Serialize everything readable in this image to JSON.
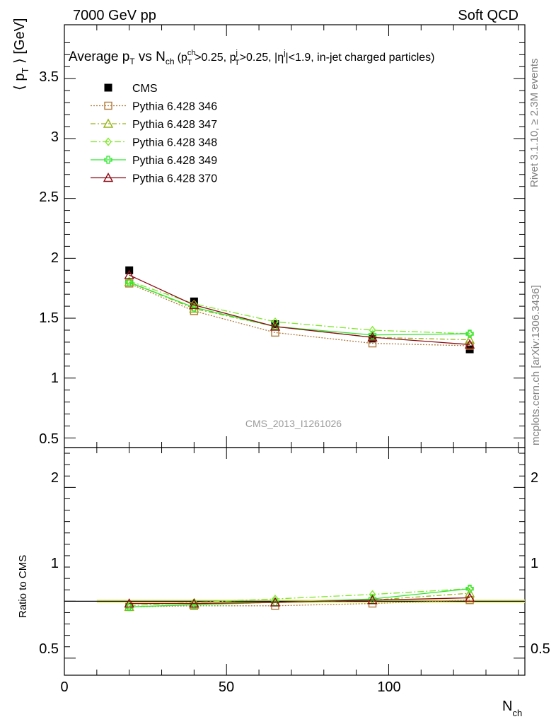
{
  "header": {
    "left": "7000 GeV pp",
    "right": "Soft QCD"
  },
  "side_text": {
    "rivet": "Rivet 3.1.10, ≥ 2.3M events",
    "mcplots": "mcplots.cern.ch [arXiv:1306.3436]"
  },
  "watermark": "CMS_2013_I1261026",
  "title": {
    "pre": "Average p",
    "sub1": "T",
    "mid": " vs N",
    "sub2": "ch",
    "cond": "(p",
    "cond_sup": "ch",
    "cond_sub": "T",
    "cond2": ">0.25, p",
    "cond2_sup": "j",
    "cond2_sub": "T",
    "cond3": ">0.25, |η",
    "cond3_sup": "j",
    "cond4": "|<1.9, in-jet charged particles)"
  },
  "axes": {
    "y_main_label": "⟨ p_T ⟩ [GeV]",
    "y_main_label_pre": "⟨ p",
    "y_main_label_sub": "T",
    "y_main_label_post": " ⟩ [GeV]",
    "y_ratio_label": "Ratio to CMS",
    "x_label": "N",
    "x_label_sub": "ch",
    "x_ticks": [
      "0",
      "50",
      "100"
    ],
    "y_main_ticks": [
      "0.5",
      "1",
      "1.5",
      "2",
      "2.5",
      "3",
      "3.5"
    ],
    "y_ratio_ticks": [
      "0.5",
      "1",
      "2"
    ]
  },
  "chart_data": {
    "type": "line",
    "x": [
      20,
      40,
      65,
      95,
      125
    ],
    "xlim": [
      0,
      142
    ],
    "ylim": [
      0.42,
      3.95
    ],
    "ratio_ylim": [
      0.35,
      2.35
    ],
    "series": [
      {
        "name": "CMS",
        "color": "#000000",
        "marker": "filled-square",
        "line": "none",
        "values": [
          1.9,
          1.64,
          1.45,
          1.33,
          1.24
        ]
      },
      {
        "name": "Pythia 6.428 346",
        "color": "#b07b3c",
        "marker": "open-square",
        "line": "dotted",
        "values": [
          1.79,
          1.56,
          1.38,
          1.29,
          1.27
        ]
      },
      {
        "name": "Pythia 6.428 347",
        "color": "#96b419",
        "marker": "open-triangle",
        "line": "dashdot",
        "values": [
          1.8,
          1.58,
          1.43,
          1.34,
          1.32
        ]
      },
      {
        "name": "Pythia 6.428 348",
        "color": "#7fe82a",
        "marker": "open-diamond",
        "line": "dashdot2",
        "values": [
          1.81,
          1.62,
          1.47,
          1.4,
          1.37
        ]
      },
      {
        "name": "Pythia 6.428 349",
        "color": "#2ee62e",
        "marker": "open-cross",
        "line": "solid",
        "values": [
          1.8,
          1.59,
          1.43,
          1.36,
          1.37
        ]
      },
      {
        "name": "Pythia 6.428 370",
        "color": "#8b0a14",
        "marker": "open-triangle",
        "line": "solid",
        "values": [
          1.86,
          1.61,
          1.43,
          1.34,
          1.28
        ]
      }
    ],
    "ratio_series": [
      {
        "name": "Pythia 6.428 346",
        "values": [
          0.95,
          0.96,
          0.96,
          0.98,
          1.01
        ]
      },
      {
        "name": "Pythia 6.428 347",
        "values": [
          0.95,
          0.97,
          0.99,
          1.01,
          1.07
        ]
      },
      {
        "name": "Pythia 6.428 348",
        "values": [
          0.96,
          0.99,
          1.02,
          1.06,
          1.11
        ]
      },
      {
        "name": "Pythia 6.428 349",
        "values": [
          0.95,
          0.97,
          0.99,
          1.02,
          1.11
        ]
      },
      {
        "name": "Pythia 6.428 370",
        "values": [
          0.98,
          0.98,
          0.99,
          1.01,
          1.03
        ]
      }
    ],
    "band_color": "#e8f07a"
  }
}
